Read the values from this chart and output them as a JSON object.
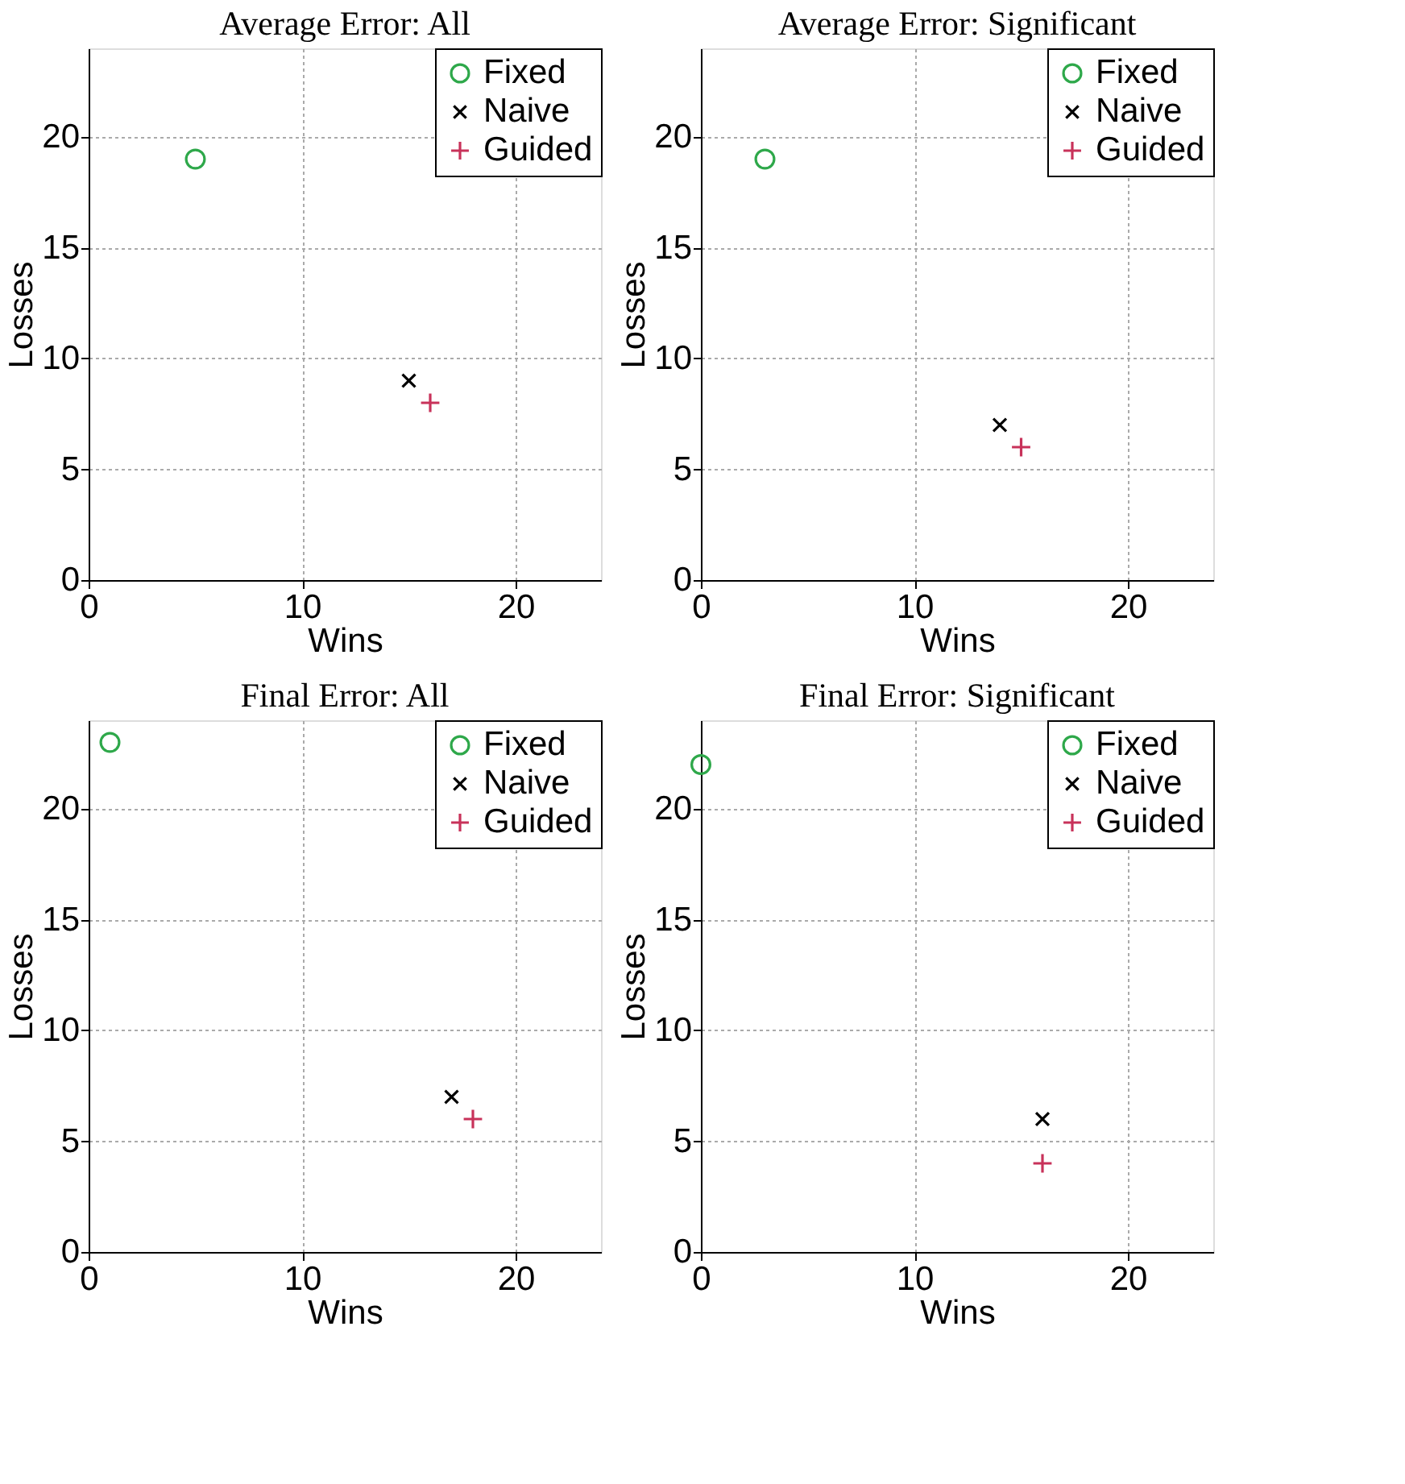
{
  "chart_data": [
    {
      "type": "scatter",
      "title": "Average Error: All",
      "xlabel": "Wins",
      "ylabel": "Losses",
      "xlim": [
        0,
        24
      ],
      "ylim": [
        0,
        24
      ],
      "xticks": [
        0,
        10,
        20
      ],
      "yticks": [
        0,
        5,
        10,
        15,
        20
      ],
      "grid": true,
      "legend": "top right",
      "series": [
        {
          "name": "Fixed",
          "color": "#2ea84a",
          "marker": "circle",
          "x": [
            5
          ],
          "values": [
            19
          ]
        },
        {
          "name": "Naive",
          "color": "#000000",
          "marker": "cross",
          "x": [
            15
          ],
          "values": [
            9
          ]
        },
        {
          "name": "Guided",
          "color": "#c8325a",
          "marker": "plus",
          "x": [
            16
          ],
          "values": [
            8
          ]
        }
      ]
    },
    {
      "type": "scatter",
      "title": "Average Error: Significant",
      "xlabel": "Wins",
      "ylabel": "Losses",
      "xlim": [
        0,
        24
      ],
      "ylim": [
        0,
        24
      ],
      "xticks": [
        0,
        10,
        20
      ],
      "yticks": [
        0,
        5,
        10,
        15,
        20
      ],
      "grid": true,
      "legend": "top right",
      "series": [
        {
          "name": "Fixed",
          "color": "#2ea84a",
          "marker": "circle",
          "x": [
            3
          ],
          "values": [
            19
          ]
        },
        {
          "name": "Naive",
          "color": "#000000",
          "marker": "cross",
          "x": [
            14
          ],
          "values": [
            7
          ]
        },
        {
          "name": "Guided",
          "color": "#c8325a",
          "marker": "plus",
          "x": [
            15
          ],
          "values": [
            6
          ]
        }
      ]
    },
    {
      "type": "scatter",
      "title": "Final Error: All",
      "xlabel": "Wins",
      "ylabel": "Losses",
      "xlim": [
        0,
        24
      ],
      "ylim": [
        0,
        24
      ],
      "xticks": [
        0,
        10,
        20
      ],
      "yticks": [
        0,
        5,
        10,
        15,
        20
      ],
      "grid": true,
      "legend": "top right",
      "series": [
        {
          "name": "Fixed",
          "color": "#2ea84a",
          "marker": "circle",
          "x": [
            1
          ],
          "values": [
            23
          ]
        },
        {
          "name": "Naive",
          "color": "#000000",
          "marker": "cross",
          "x": [
            17
          ],
          "values": [
            7
          ]
        },
        {
          "name": "Guided",
          "color": "#c8325a",
          "marker": "plus",
          "x": [
            18
          ],
          "values": [
            6
          ]
        }
      ]
    },
    {
      "type": "scatter",
      "title": "Final Error: Significant",
      "xlabel": "Wins",
      "ylabel": "Losses",
      "xlim": [
        0,
        24
      ],
      "ylim": [
        0,
        24
      ],
      "xticks": [
        0,
        10,
        20
      ],
      "yticks": [
        0,
        5,
        10,
        15,
        20
      ],
      "grid": true,
      "legend": "top right",
      "series": [
        {
          "name": "Fixed",
          "color": "#2ea84a",
          "marker": "circle",
          "x": [
            0
          ],
          "values": [
            22
          ]
        },
        {
          "name": "Naive",
          "color": "#000000",
          "marker": "cross",
          "x": [
            16
          ],
          "values": [
            6
          ]
        },
        {
          "name": "Guided",
          "color": "#c8325a",
          "marker": "plus",
          "x": [
            16
          ],
          "values": [
            4
          ]
        }
      ]
    }
  ]
}
